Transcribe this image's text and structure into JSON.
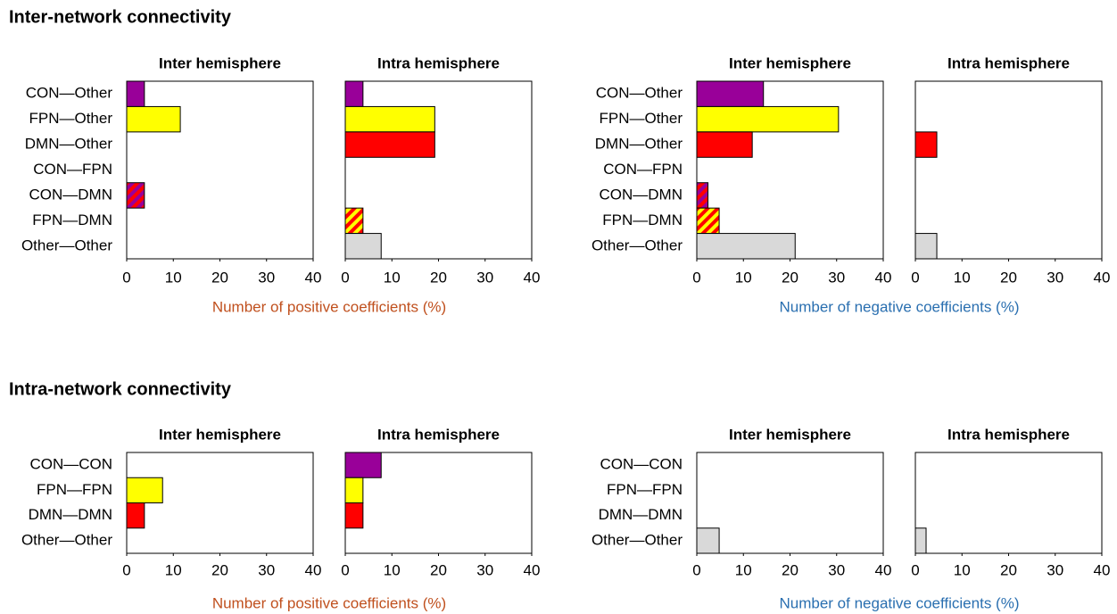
{
  "headings": [
    "Inter-network connectivity",
    "Intra-network connectivity"
  ],
  "chart_data": [
    {
      "type": "bar",
      "orientation": "horizontal",
      "xlabel": "Number of positive coefficients (%)",
      "xlabel_color": "#c0501e",
      "categories": [
        "CON—Other",
        "FPN—Other",
        "DMN—Other",
        "CON—FPN",
        "CON—DMN",
        "FPN—DMN",
        "Other—Other"
      ],
      "colors": [
        [
          "#990099"
        ],
        [
          "#ffff00"
        ],
        [
          "#ff0000"
        ],
        [
          "#990099",
          "#ffff00"
        ],
        [
          "#990099",
          "#ff0000"
        ],
        [
          "#ffff00",
          "#ff0000"
        ],
        [
          "#d9d9d9"
        ]
      ],
      "xlim": [
        0,
        40
      ],
      "xticks": [
        0,
        10,
        20,
        30,
        40
      ],
      "panels": [
        {
          "title": "Inter hemisphere",
          "values": [
            3.8,
            11.5,
            0,
            0,
            3.8,
            0,
            0
          ]
        },
        {
          "title": "Intra hemisphere",
          "values": [
            3.8,
            19.2,
            19.2,
            0,
            0,
            3.8,
            7.7
          ]
        }
      ]
    },
    {
      "type": "bar",
      "orientation": "horizontal",
      "xlabel": "Number of negative coefficients (%)",
      "xlabel_color": "#2a6fb0",
      "categories": [
        "CON—Other",
        "FPN—Other",
        "DMN—Other",
        "CON—FPN",
        "CON—DMN",
        "FPN—DMN",
        "Other—Other"
      ],
      "colors": [
        [
          "#990099"
        ],
        [
          "#ffff00"
        ],
        [
          "#ff0000"
        ],
        [
          "#990099",
          "#ffff00"
        ],
        [
          "#990099",
          "#ff0000"
        ],
        [
          "#ffff00",
          "#ff0000"
        ],
        [
          "#d9d9d9"
        ]
      ],
      "xlim": [
        0,
        40
      ],
      "xticks": [
        0,
        10,
        20,
        30,
        40
      ],
      "panels": [
        {
          "title": "Inter hemisphere",
          "values": [
            14.3,
            30.4,
            11.9,
            0,
            2.4,
            4.8,
            21.1
          ]
        },
        {
          "title": "Intra hemisphere",
          "values": [
            0,
            0,
            4.6,
            0,
            0,
            0,
            4.6
          ]
        }
      ]
    },
    {
      "type": "bar",
      "orientation": "horizontal",
      "xlabel": "Number of positive coefficients (%)",
      "xlabel_color": "#c0501e",
      "categories": [
        "CON—CON",
        "FPN—FPN",
        "DMN—DMN",
        "Other—Other"
      ],
      "colors": [
        [
          "#990099"
        ],
        [
          "#ffff00"
        ],
        [
          "#ff0000"
        ],
        [
          "#d9d9d9"
        ]
      ],
      "xlim": [
        0,
        40
      ],
      "xticks": [
        0,
        10,
        20,
        30,
        40
      ],
      "panels": [
        {
          "title": "Inter hemisphere",
          "values": [
            0,
            7.7,
            3.8,
            0
          ]
        },
        {
          "title": "Intra hemisphere",
          "values": [
            7.7,
            3.8,
            3.8,
            0
          ]
        }
      ]
    },
    {
      "type": "bar",
      "orientation": "horizontal",
      "xlabel": "Number of negative coefficients (%)",
      "xlabel_color": "#2a6fb0",
      "categories": [
        "CON—CON",
        "FPN—FPN",
        "DMN—DMN",
        "Other—Other"
      ],
      "colors": [
        [
          "#990099"
        ],
        [
          "#ffff00"
        ],
        [
          "#ff0000"
        ],
        [
          "#d9d9d9"
        ]
      ],
      "xlim": [
        0,
        40
      ],
      "xticks": [
        0,
        10,
        20,
        30,
        40
      ],
      "panels": [
        {
          "title": "Inter hemisphere",
          "values": [
            0,
            0,
            0,
            4.8
          ]
        },
        {
          "title": "Intra hemisphere",
          "values": [
            0,
            0,
            0,
            2.3
          ]
        }
      ]
    }
  ]
}
